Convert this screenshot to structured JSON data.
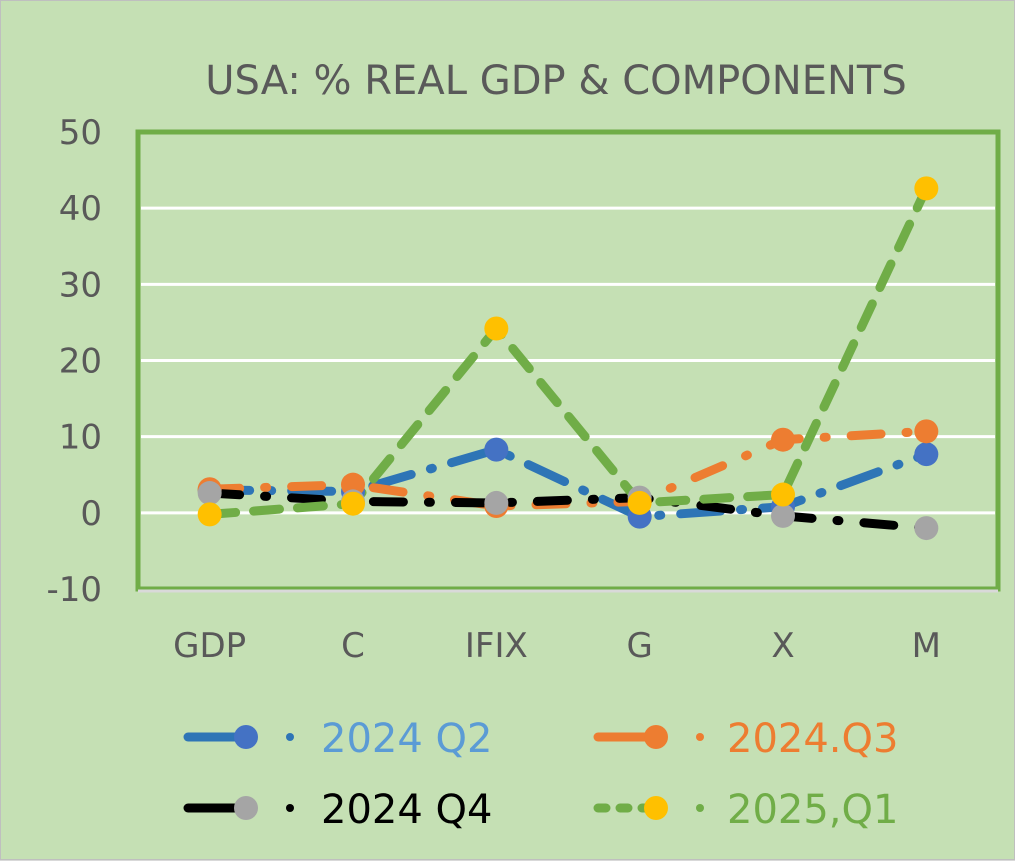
{
  "chart_data": {
    "type": "line",
    "title": "USA: % REAL GDP & COMPONENTS",
    "xlabel": "",
    "ylabel": "",
    "categories": [
      "GDP",
      "C",
      "IFIX",
      "G",
      "X",
      "M"
    ],
    "ylim": [
      -10,
      50
    ],
    "yticks": [
      50,
      40,
      30,
      20,
      10,
      0,
      -10
    ],
    "ytick_labels": [
      "50",
      "40",
      "30",
      "20",
      "10",
      "0",
      "-10"
    ],
    "grid": true,
    "legend_position": "bottom",
    "series": [
      {
        "name": "2024 Q2",
        "label_color": "#5b9bd5",
        "line_color": "#2e75b6",
        "marker_color": "#4472c4",
        "dash": "dash-dot",
        "values": [
          3.0,
          2.8,
          8.3,
          -0.5,
          0.8,
          7.7
        ]
      },
      {
        "name": "2024.Q3",
        "label_color": "#ed7d31",
        "line_color": "#ed7d31",
        "marker_color": "#ed7d31",
        "dash": "long-dash-dot",
        "values": [
          3.1,
          3.7,
          0.9,
          1.5,
          9.6,
          10.7
        ]
      },
      {
        "name": "2024 Q4",
        "label_color": "#000000",
        "line_color": "#000000",
        "marker_color": "#a5a5a5",
        "dash": "long-dash-dot",
        "values": [
          2.6,
          1.5,
          1.3,
          2.0,
          -0.4,
          -2.0
        ]
      },
      {
        "name": "2025,Q1",
        "label_color": "#70ad47",
        "line_color": "#70ad47",
        "marker_color": "#ffc000",
        "dash": "dash",
        "values": [
          -0.2,
          1.2,
          24.2,
          1.3,
          2.4,
          42.6
        ]
      }
    ]
  }
}
